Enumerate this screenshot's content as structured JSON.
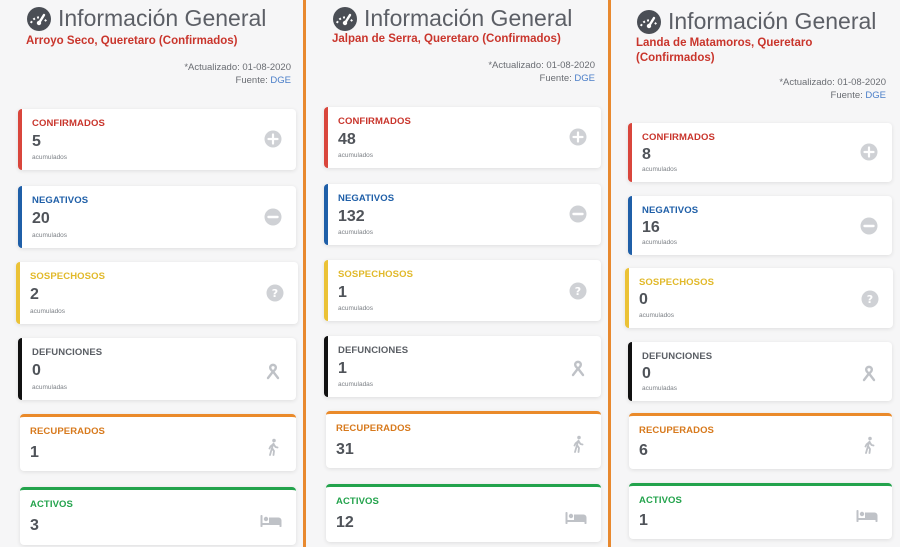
{
  "header_title": "Información General",
  "panels": [
    {
      "location": "Arroyo Seco, Queretaro (Confirmados)",
      "updated": "*Actualizado: 01-08-2020",
      "source_label": "Fuente:",
      "source_link": "DGE",
      "cards": {
        "confirmados": {
          "label": "CONFIRMADOS",
          "value": "5",
          "sub": "acumulados"
        },
        "negativos": {
          "label": "NEGATIVOS",
          "value": "20",
          "sub": "acumulados"
        },
        "sospechosos": {
          "label": "SOSPECHOSOS",
          "value": "2",
          "sub": "acumulados"
        },
        "defunciones": {
          "label": "DEFUNCIONES",
          "value": "0",
          "sub": "acumuladas"
        },
        "recuperados": {
          "label": "RECUPERADOS",
          "value": "1"
        },
        "activos": {
          "label": "ACTIVOS",
          "value": "3"
        }
      }
    },
    {
      "location": "Jalpan de Serra, Queretaro (Confirmados)",
      "updated": "*Actualizado: 01-08-2020",
      "source_label": "Fuente:",
      "source_link": "DGE",
      "cards": {
        "confirmados": {
          "label": "CONFIRMADOS",
          "value": "48",
          "sub": "acumulados"
        },
        "negativos": {
          "label": "NEGATIVOS",
          "value": "132",
          "sub": "acumulados"
        },
        "sospechosos": {
          "label": "SOSPECHOSOS",
          "value": "1",
          "sub": "acumulados"
        },
        "defunciones": {
          "label": "DEFUNCIONES",
          "value": "1",
          "sub": "acumuladas"
        },
        "recuperados": {
          "label": "RECUPERADOS",
          "value": "31"
        },
        "activos": {
          "label": "ACTIVOS",
          "value": "12"
        }
      }
    },
    {
      "location_line1": "Landa de Matamoros, Queretaro",
      "location_line2": "(Confirmados)",
      "updated": "*Actualizado: 01-08-2020",
      "source_label": "Fuente:",
      "source_link": "DGE",
      "cards": {
        "confirmados": {
          "label": "CONFIRMADOS",
          "value": "8",
          "sub": "acumulados"
        },
        "negativos": {
          "label": "NEGATIVOS",
          "value": "16",
          "sub": "acumulados"
        },
        "sospechosos": {
          "label": "SOSPECHOSOS",
          "value": "0",
          "sub": "acumulados"
        },
        "defunciones": {
          "label": "DEFUNCIONES",
          "value": "0",
          "sub": "acumuladas"
        },
        "recuperados": {
          "label": "RECUPERADOS",
          "value": "6"
        },
        "activos": {
          "label": "ACTIVOS",
          "value": "1"
        }
      }
    }
  ],
  "icons": [
    "gauge-icon",
    "plus-circle-icon",
    "minus-circle-icon",
    "question-circle-icon",
    "ribbon-icon",
    "walking-icon",
    "bed-icon"
  ],
  "colors": {
    "confirmados": "#d9463c",
    "negativos": "#1f5fa8",
    "sospechosos": "#ebc236",
    "defunciones": "#111111",
    "recuperados": "#ea8a2a",
    "activos": "#23a34c",
    "separator": "#e8892f"
  }
}
